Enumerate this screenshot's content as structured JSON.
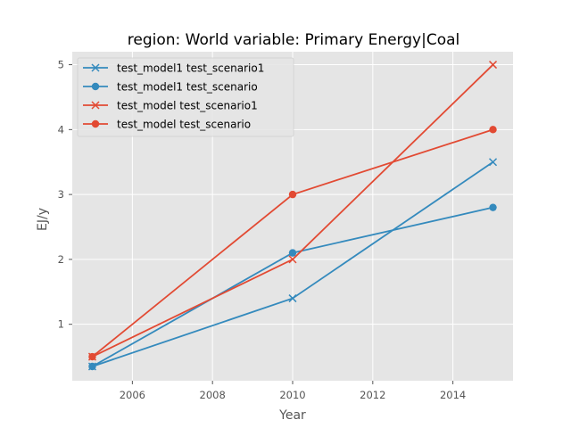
{
  "chart_data": {
    "type": "line",
    "title": "region: World variable: Primary Energy|Coal",
    "xlabel": "Year",
    "ylabel": "EJ/y",
    "xlim": [
      2004.5,
      2015.5
    ],
    "ylim": [
      0.13,
      5.2
    ],
    "xticks": [
      2006,
      2008,
      2010,
      2012,
      2014
    ],
    "yticks": [
      1,
      2,
      3,
      4,
      5
    ],
    "grid": true,
    "legend_position": "top-left",
    "x": [
      2005,
      2010,
      2015
    ],
    "series": [
      {
        "name": "test_model1 test_scenario1",
        "color": "#348abd",
        "marker": "x",
        "values": [
          0.35,
          1.4,
          3.5
        ]
      },
      {
        "name": "test_model1 test_scenario",
        "color": "#348abd",
        "marker": "o",
        "values": [
          0.35,
          2.1,
          2.8
        ]
      },
      {
        "name": "test_model test_scenario1",
        "color": "#e24a33",
        "marker": "x",
        "values": [
          0.5,
          2.0,
          5.0
        ]
      },
      {
        "name": "test_model test_scenario",
        "color": "#e24a33",
        "marker": "o",
        "values": [
          0.5,
          3.0,
          4.0
        ]
      }
    ]
  },
  "style": {
    "axes_background": "#e5e5e5",
    "grid_color": "#ffffff",
    "tick_color": "#555555"
  }
}
